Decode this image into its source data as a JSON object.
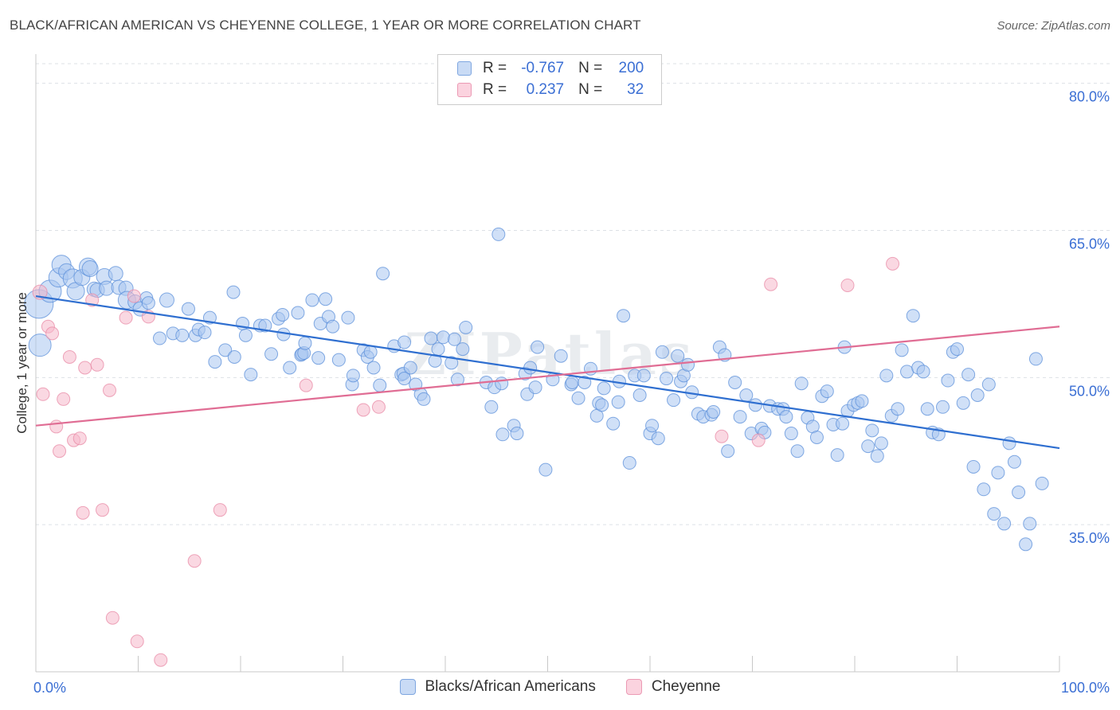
{
  "title": "BLACK/AFRICAN AMERICAN VS CHEYENNE COLLEGE, 1 YEAR OR MORE CORRELATION CHART",
  "source": "Source: ZipAtlas.com",
  "watermark": "ZIPatlas",
  "legend": {
    "rows": [
      {
        "r_label": "R =",
        "r_value": "-0.767",
        "n_label": "N =",
        "n_value": "200",
        "color": "#aac6f0"
      },
      {
        "r_label": "R =",
        "r_value": "0.237",
        "n_label": "N =",
        "n_value": "32",
        "color": "#f5b8cb"
      }
    ]
  },
  "bottom_legend": [
    {
      "label": "Blacks/African Americans",
      "color": "#aac6f0"
    },
    {
      "label": "Cheyenne",
      "color": "#f5b8cb"
    }
  ],
  "chart_data": {
    "type": "scatter",
    "title": "BLACK/AFRICAN AMERICAN VS CHEYENNE COLLEGE, 1 YEAR OR MORE CORRELATION CHART",
    "xlabel": "",
    "ylabel": "College, 1 year or more",
    "xlim": [
      0,
      100
    ],
    "ylim": [
      20,
      82
    ],
    "x_tick_labels": [
      "0.0%",
      "100.0%"
    ],
    "y_ticks": [
      35,
      50,
      65,
      80
    ],
    "y_tick_labels": [
      "35.0%",
      "50.0%",
      "65.0%",
      "80.0%"
    ],
    "grid": true,
    "legend_position": "top-center",
    "series": [
      {
        "name": "Blacks/African Americans",
        "color": "#5b8fd9",
        "fill": "#aac6f0",
        "trend": {
          "x": [
            0,
            100
          ],
          "y": [
            58.3,
            42.8
          ],
          "color": "#2f6fd0"
        },
        "points": [
          [
            0.3,
            57.5,
            18
          ],
          [
            0.4,
            53.3,
            14
          ],
          [
            1.4,
            58.8,
            14
          ],
          [
            2.2,
            60.2,
            12
          ],
          [
            2.5,
            61.5,
            12
          ],
          [
            3.0,
            60.8,
            10
          ],
          [
            3.6,
            60.1,
            12
          ],
          [
            3.9,
            58.8,
            11
          ],
          [
            4.5,
            60.2,
            10
          ],
          [
            5.1,
            61.3,
            11
          ],
          [
            5.3,
            61.1,
            10
          ],
          [
            5.7,
            59.0,
            9
          ],
          [
            6.0,
            58.9,
            9
          ],
          [
            6.7,
            60.3,
            10
          ],
          [
            6.9,
            59.1,
            9
          ],
          [
            7.8,
            60.6,
            9
          ],
          [
            8.1,
            59.2,
            9
          ],
          [
            8.8,
            59.1,
            9
          ],
          [
            8.9,
            57.9,
            11
          ],
          [
            9.7,
            57.7,
            9
          ],
          [
            10.2,
            57.0,
            9
          ],
          [
            10.8,
            58.1,
            8
          ],
          [
            11.0,
            57.6,
            8
          ],
          [
            12.8,
            57.9,
            9
          ],
          [
            12.1,
            54.0,
            8
          ],
          [
            13.4,
            54.5,
            8
          ],
          [
            14.3,
            54.3,
            8
          ],
          [
            14.9,
            57.0,
            8
          ],
          [
            15.6,
            54.3,
            8
          ],
          [
            15.9,
            54.9,
            8
          ],
          [
            16.5,
            54.6,
            8
          ],
          [
            17.0,
            56.1,
            8
          ],
          [
            17.5,
            51.6,
            8
          ],
          [
            18.5,
            52.8,
            8
          ],
          [
            19.3,
            58.7,
            8
          ],
          [
            19.4,
            52.1,
            8
          ],
          [
            20.2,
            55.5,
            8
          ],
          [
            20.5,
            54.3,
            8
          ],
          [
            21.0,
            50.3,
            8
          ],
          [
            21.9,
            55.3,
            8
          ],
          [
            22.4,
            55.3,
            8
          ],
          [
            23.0,
            52.4,
            8
          ],
          [
            23.7,
            56.0,
            8
          ],
          [
            24.1,
            56.4,
            8
          ],
          [
            24.2,
            54.4,
            8
          ],
          [
            24.8,
            51.0,
            8
          ],
          [
            25.6,
            56.6,
            8
          ],
          [
            25.9,
            52.3,
            8
          ],
          [
            26.0,
            52.4,
            8
          ],
          [
            26.2,
            52.5,
            8
          ],
          [
            26.3,
            53.5,
            8
          ],
          [
            27.0,
            57.9,
            8
          ],
          [
            27.6,
            52.0,
            8
          ],
          [
            27.8,
            55.5,
            8
          ],
          [
            28.3,
            58.0,
            8
          ],
          [
            28.6,
            56.2,
            8
          ],
          [
            29.0,
            55.2,
            8
          ],
          [
            29.6,
            51.8,
            8
          ],
          [
            30.5,
            56.1,
            8
          ],
          [
            30.9,
            49.3,
            8
          ],
          [
            31.0,
            50.2,
            8
          ],
          [
            32.0,
            52.8,
            8
          ],
          [
            32.4,
            52.1,
            8
          ],
          [
            32.7,
            52.6,
            8
          ],
          [
            33.0,
            51.0,
            8
          ],
          [
            33.6,
            49.2,
            8
          ],
          [
            33.9,
            60.6,
            8
          ],
          [
            35.0,
            53.2,
            8
          ],
          [
            35.7,
            50.3,
            8
          ],
          [
            35.9,
            50.4,
            8
          ],
          [
            36.0,
            53.6,
            8
          ],
          [
            36.6,
            51.0,
            8
          ],
          [
            37.1,
            49.3,
            8
          ],
          [
            37.6,
            48.3,
            8
          ],
          [
            37.9,
            47.8,
            8
          ],
          [
            38.6,
            54.0,
            8
          ],
          [
            39.0,
            51.7,
            8
          ],
          [
            39.3,
            52.9,
            8
          ],
          [
            39.8,
            54.1,
            8
          ],
          [
            40.6,
            51.5,
            8
          ],
          [
            40.9,
            53.9,
            8
          ],
          [
            41.2,
            49.8,
            8
          ],
          [
            41.7,
            52.9,
            8
          ],
          [
            42.0,
            55.1,
            8
          ],
          [
            44.0,
            49.5,
            8
          ],
          [
            44.5,
            47.0,
            8
          ],
          [
            44.8,
            49.0,
            8
          ],
          [
            45.2,
            64.6,
            8
          ],
          [
            45.5,
            49.4,
            8
          ],
          [
            46.7,
            45.1,
            8
          ],
          [
            47.0,
            44.3,
            8
          ],
          [
            47.8,
            50.4,
            8
          ],
          [
            48.0,
            48.3,
            8
          ],
          [
            48.3,
            51.0,
            8
          ],
          [
            48.8,
            49.0,
            8
          ],
          [
            49.0,
            53.1,
            8
          ],
          [
            49.8,
            40.6,
            8
          ],
          [
            50.5,
            49.8,
            8
          ],
          [
            51.3,
            52.2,
            8
          ],
          [
            52.3,
            49.3,
            8
          ],
          [
            52.4,
            49.5,
            8
          ],
          [
            53.0,
            47.9,
            8
          ],
          [
            53.6,
            49.5,
            8
          ],
          [
            54.2,
            50.9,
            8
          ],
          [
            54.8,
            46.1,
            8
          ],
          [
            55.0,
            47.4,
            8
          ],
          [
            55.3,
            47.2,
            8
          ],
          [
            55.5,
            48.9,
            8
          ],
          [
            56.4,
            45.3,
            8
          ],
          [
            56.9,
            47.5,
            8
          ],
          [
            57.0,
            49.6,
            8
          ],
          [
            57.4,
            56.3,
            8
          ],
          [
            58.0,
            41.3,
            8
          ],
          [
            58.5,
            50.2,
            8
          ],
          [
            59.0,
            48.2,
            8
          ],
          [
            59.4,
            50.2,
            8
          ],
          [
            60.0,
            44.3,
            8
          ],
          [
            60.2,
            45.1,
            8
          ],
          [
            60.8,
            43.8,
            8
          ],
          [
            61.2,
            52.6,
            8
          ],
          [
            61.6,
            49.9,
            8
          ],
          [
            62.3,
            47.7,
            8
          ],
          [
            62.7,
            52.2,
            8
          ],
          [
            63.0,
            49.6,
            8
          ],
          [
            63.3,
            50.2,
            8
          ],
          [
            63.7,
            51.3,
            8
          ],
          [
            64.1,
            48.5,
            8
          ],
          [
            64.7,
            46.3,
            8
          ],
          [
            65.2,
            46.0,
            8
          ],
          [
            66.0,
            46.2,
            8
          ],
          [
            66.2,
            46.5,
            8
          ],
          [
            66.8,
            53.1,
            8
          ],
          [
            67.3,
            52.3,
            8
          ],
          [
            67.6,
            42.5,
            8
          ],
          [
            68.3,
            49.5,
            8
          ],
          [
            68.8,
            46.0,
            8
          ],
          [
            69.4,
            48.2,
            8
          ],
          [
            69.9,
            44.3,
            8
          ],
          [
            70.3,
            47.2,
            8
          ],
          [
            70.9,
            44.8,
            8
          ],
          [
            71.2,
            44.4,
            8
          ],
          [
            71.7,
            47.1,
            8
          ],
          [
            72.5,
            46.8,
            8
          ],
          [
            73.0,
            46.8,
            8
          ],
          [
            73.3,
            46.0,
            8
          ],
          [
            73.8,
            44.3,
            8
          ],
          [
            74.4,
            42.5,
            8
          ],
          [
            74.8,
            49.4,
            8
          ],
          [
            75.4,
            45.9,
            8
          ],
          [
            75.9,
            45.0,
            8
          ],
          [
            76.3,
            43.9,
            8
          ],
          [
            76.8,
            48.1,
            8
          ],
          [
            77.3,
            48.6,
            8
          ],
          [
            77.9,
            45.2,
            8
          ],
          [
            78.3,
            42.1,
            8
          ],
          [
            78.8,
            45.3,
            8
          ],
          [
            79.0,
            53.1,
            8
          ],
          [
            79.3,
            46.6,
            8
          ],
          [
            79.9,
            47.2,
            8
          ],
          [
            80.3,
            47.4,
            8
          ],
          [
            80.7,
            47.6,
            8
          ],
          [
            81.3,
            43.0,
            8
          ],
          [
            81.7,
            44.6,
            8
          ],
          [
            82.2,
            42.0,
            8
          ],
          [
            82.6,
            43.3,
            8
          ],
          [
            83.1,
            50.2,
            8
          ],
          [
            83.6,
            46.1,
            8
          ],
          [
            84.2,
            46.8,
            8
          ],
          [
            84.6,
            52.8,
            8
          ],
          [
            85.1,
            50.6,
            8
          ],
          [
            85.7,
            56.3,
            8
          ],
          [
            86.2,
            51.0,
            8
          ],
          [
            86.7,
            50.6,
            8
          ],
          [
            87.1,
            46.8,
            8
          ],
          [
            87.6,
            44.4,
            8
          ],
          [
            88.2,
            44.2,
            8
          ],
          [
            88.6,
            47.0,
            8
          ],
          [
            89.1,
            49.7,
            8
          ],
          [
            89.6,
            52.6,
            8
          ],
          [
            90.0,
            52.9,
            8
          ],
          [
            90.6,
            47.4,
            8
          ],
          [
            91.1,
            50.3,
            8
          ],
          [
            91.6,
            40.9,
            8
          ],
          [
            92.0,
            48.2,
            8
          ],
          [
            92.6,
            38.6,
            8
          ],
          [
            93.1,
            49.3,
            8
          ],
          [
            93.6,
            36.1,
            8
          ],
          [
            94.0,
            40.3,
            8
          ],
          [
            94.6,
            35.1,
            8
          ],
          [
            95.1,
            43.3,
            8
          ],
          [
            95.6,
            41.4,
            8
          ],
          [
            96.0,
            38.3,
            8
          ],
          [
            96.7,
            33.0,
            8
          ],
          [
            97.1,
            35.1,
            8
          ],
          [
            97.7,
            51.9,
            8
          ],
          [
            98.3,
            39.2,
            8
          ],
          [
            45.6,
            44.2,
            8
          ],
          [
            36.0,
            49.9,
            8
          ]
        ]
      },
      {
        "name": "Cheyenne",
        "color": "#e88aa6",
        "fill": "#f5b8cb",
        "trend": {
          "x": [
            0,
            100
          ],
          "y": [
            45.1,
            55.2
          ],
          "color": "#e06d94"
        },
        "points": [
          [
            0.4,
            58.7,
            9
          ],
          [
            0.7,
            48.3,
            8
          ],
          [
            1.2,
            55.2,
            8
          ],
          [
            1.6,
            54.5,
            8
          ],
          [
            2.0,
            45.0,
            8
          ],
          [
            2.3,
            42.5,
            8
          ],
          [
            2.7,
            47.8,
            8
          ],
          [
            3.3,
            52.1,
            8
          ],
          [
            3.7,
            43.6,
            8
          ],
          [
            4.3,
            43.8,
            8
          ],
          [
            4.6,
            36.2,
            8
          ],
          [
            4.8,
            51.0,
            8
          ],
          [
            5.5,
            57.9,
            8
          ],
          [
            6.0,
            51.3,
            8
          ],
          [
            6.5,
            36.5,
            8
          ],
          [
            7.2,
            48.7,
            8
          ],
          [
            7.5,
            25.5,
            8
          ],
          [
            8.8,
            56.1,
            8
          ],
          [
            9.6,
            58.3,
            8
          ],
          [
            9.9,
            23.1,
            8
          ],
          [
            11.0,
            56.2,
            8
          ],
          [
            12.2,
            21.2,
            8
          ],
          [
            15.5,
            31.3,
            8
          ],
          [
            18.0,
            36.5,
            8
          ],
          [
            26.4,
            49.2,
            8
          ],
          [
            32.0,
            46.7,
            8
          ],
          [
            33.5,
            47.0,
            8
          ],
          [
            70.6,
            43.6,
            8
          ],
          [
            71.8,
            59.5,
            8
          ],
          [
            79.3,
            59.4,
            8
          ],
          [
            83.7,
            61.6,
            8
          ],
          [
            67.0,
            44.0,
            8
          ]
        ]
      }
    ]
  }
}
